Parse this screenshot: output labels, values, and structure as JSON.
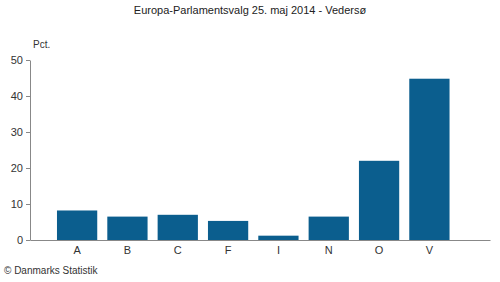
{
  "chart_data": {
    "type": "bar",
    "title": "Europa-Parlamentsvalg 25. maj 2014 - Vedersø",
    "y_label": "Pct.",
    "footer": "© Danmarks Statistik",
    "categories": [
      "A",
      "B",
      "C",
      "F",
      "I",
      "N",
      "O",
      "V"
    ],
    "values": [
      8.2,
      6.5,
      7.0,
      5.3,
      1.2,
      6.5,
      22.0,
      44.8
    ],
    "color": "#0b5e8e",
    "ylim": [
      0,
      50
    ],
    "yticks": [
      0,
      10,
      20,
      30,
      40,
      50
    ],
    "grid": false
  }
}
